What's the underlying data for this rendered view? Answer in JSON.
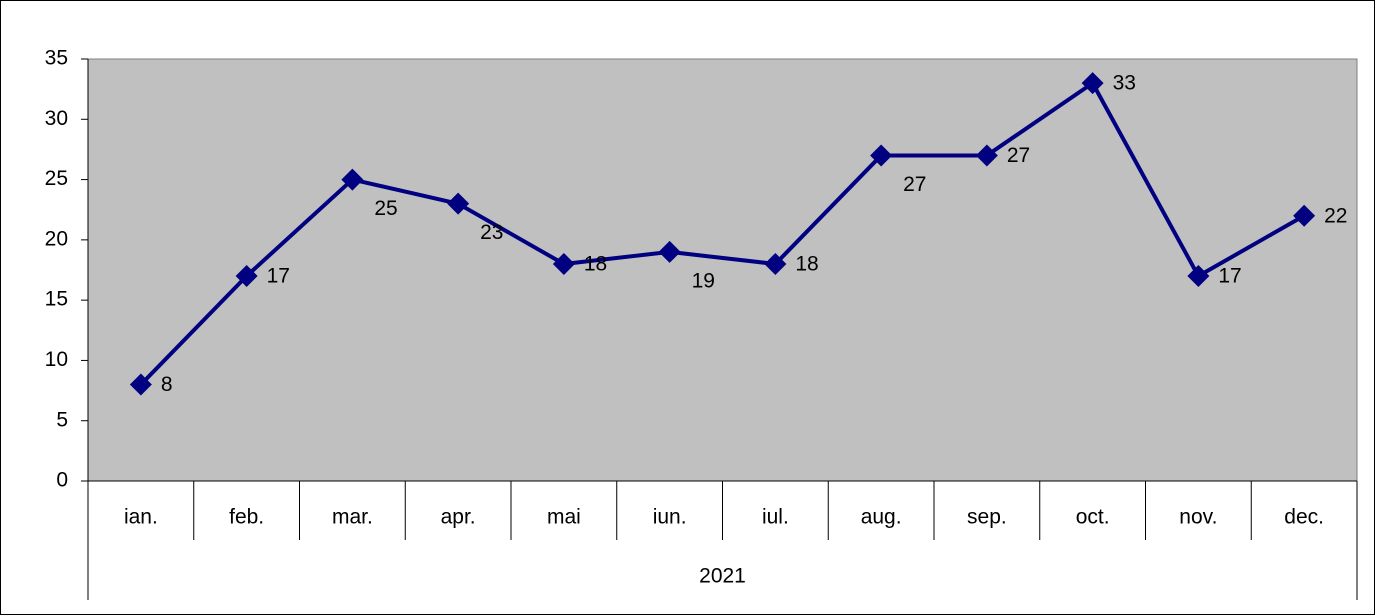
{
  "chart_data": {
    "type": "line",
    "categories": [
      "ian.",
      "feb.",
      "mar.",
      "apr.",
      "mai",
      "iun.",
      "iul.",
      "aug.",
      "sep.",
      "oct.",
      "nov.",
      "dec."
    ],
    "category_group": "2021",
    "series": [
      {
        "color": "#000080",
        "values": [
          8,
          17,
          25,
          23,
          18,
          19,
          18,
          27,
          27,
          33,
          17,
          22
        ]
      }
    ],
    "ylim": [
      0,
      35
    ],
    "yticks": [
      0,
      5,
      10,
      15,
      20,
      25,
      30,
      35
    ],
    "plot_background": "#c0c0c0",
    "data_labels": true,
    "grid": false
  }
}
